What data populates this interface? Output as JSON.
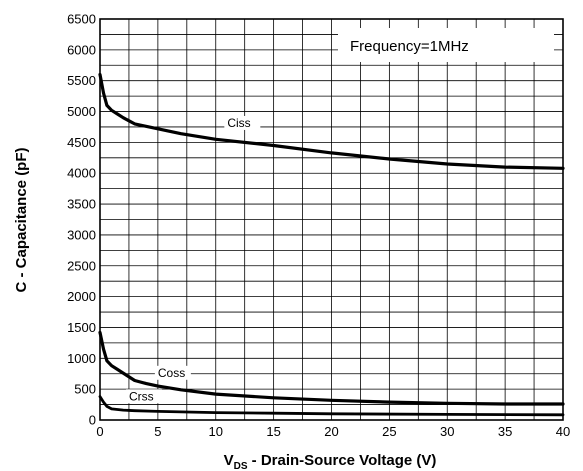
{
  "chart_data": {
    "type": "line",
    "title": "",
    "annotation": "Frequency=1MHz",
    "xlabel": {
      "prefix": "V",
      "subscript": "DS",
      "rest": " - Drain-Source Voltage (V)"
    },
    "ylabel": "C - Capacitance (pF)",
    "xlim": [
      0,
      40
    ],
    "ylim": [
      0,
      6500
    ],
    "xticks": [
      "0",
      "5",
      "10",
      "15",
      "20",
      "25",
      "30",
      "35",
      "40"
    ],
    "yticks": [
      "0",
      "500",
      "1000",
      "1500",
      "2000",
      "2500",
      "3000",
      "3500",
      "4000",
      "4500",
      "5000",
      "5500",
      "6000",
      "6500"
    ],
    "grid": true,
    "series": [
      {
        "name": "Ciss",
        "x": [
          0,
          0.3,
          0.6,
          1,
          1.5,
          2,
          3,
          5,
          7,
          10,
          15,
          20,
          25,
          30,
          35,
          40
        ],
        "y": [
          5600,
          5300,
          5100,
          5020,
          4960,
          4900,
          4800,
          4720,
          4640,
          4550,
          4450,
          4330,
          4230,
          4150,
          4100,
          4080
        ]
      },
      {
        "name": "Coss",
        "x": [
          0,
          0.3,
          0.6,
          1,
          1.5,
          2,
          3,
          4,
          5,
          7,
          10,
          15,
          20,
          25,
          30,
          35,
          40
        ],
        "y": [
          1420,
          1150,
          960,
          880,
          820,
          760,
          640,
          590,
          550,
          490,
          420,
          360,
          320,
          290,
          270,
          260,
          260
        ]
      },
      {
        "name": "Crss",
        "x": [
          0,
          0.3,
          0.6,
          1,
          2,
          3,
          5,
          10,
          15,
          20,
          30,
          40
        ],
        "y": [
          380,
          290,
          220,
          180,
          160,
          150,
          140,
          120,
          110,
          100,
          90,
          85
        ]
      }
    ]
  }
}
